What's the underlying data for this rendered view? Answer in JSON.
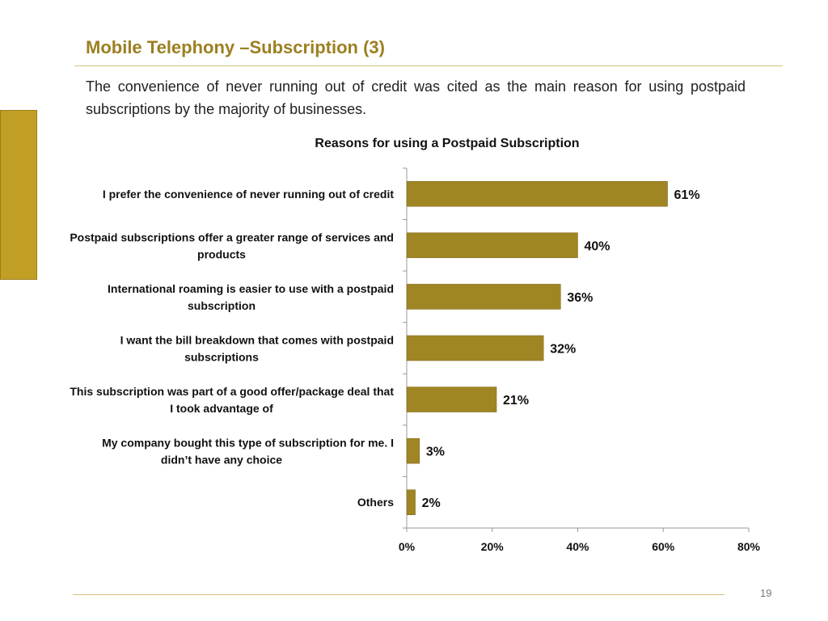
{
  "slide": {
    "title": "Mobile Telephony –Subscription (3)",
    "subtitle": "The convenience of never running out of credit was cited as the main reason for using postpaid subscriptions by the majority of businesses.",
    "page_number": "19"
  },
  "colors": {
    "bar": "#a08524",
    "accent": "#c09f24",
    "title": "#9c7f21",
    "rule": "#d6c07a"
  },
  "chart_data": {
    "type": "bar",
    "orientation": "horizontal",
    "title": "Reasons for using a Postpaid Subscription",
    "categories": [
      [
        "I prefer the convenience of never running out of credit"
      ],
      [
        "Postpaid subscriptions offer a greater range of services and",
        "products"
      ],
      [
        "International roaming is easier to use with a postpaid",
        "subscription"
      ],
      [
        "I want the bill breakdown that comes with postpaid",
        "subscriptions"
      ],
      [
        "This subscription was part of a good offer/package deal that",
        "I took advantage of"
      ],
      [
        "My company bought this type of subscription for me. I",
        "didn’t have any choice"
      ],
      [
        "Others"
      ]
    ],
    "values": [
      61,
      40,
      36,
      32,
      21,
      3,
      2
    ],
    "value_labels": [
      "61%",
      "40%",
      "36%",
      "32%",
      "21%",
      "3%",
      "2%"
    ],
    "xlim": [
      0,
      80
    ],
    "xticks": [
      0,
      20,
      40,
      60,
      80
    ],
    "xtick_labels": [
      "0%",
      "20%",
      "40%",
      "60%",
      "80%"
    ],
    "grid": false,
    "legend": "none"
  }
}
